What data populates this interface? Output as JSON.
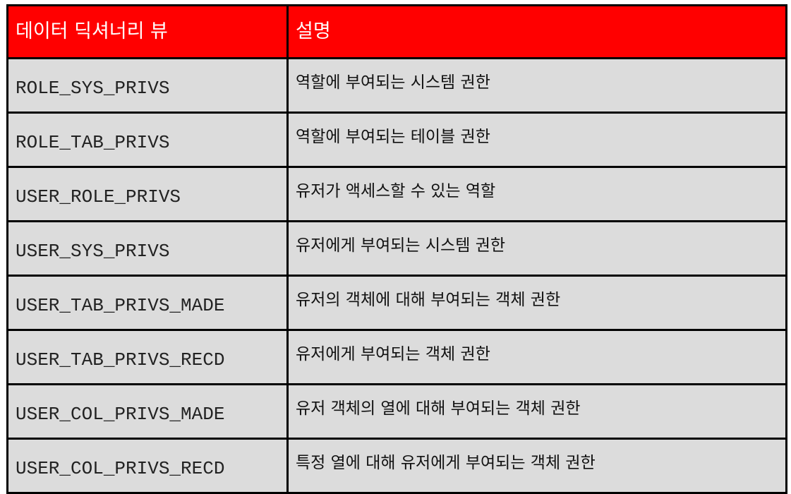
{
  "table": {
    "headers": [
      "데이터 딕셔너리 뷰",
      "설명"
    ],
    "header_color": "#ff0000",
    "row_color": "#dcdcdc",
    "rows": [
      {
        "view": "ROLE_SYS_PRIVS",
        "desc": "역할에 부여되는 시스템 권한"
      },
      {
        "view": "ROLE_TAB_PRIVS",
        "desc": "역할에 부여되는 테이블 권한"
      },
      {
        "view": "USER_ROLE_PRIVS",
        "desc": "유저가 액세스할 수 있는 역할"
      },
      {
        "view": "USER_SYS_PRIVS",
        "desc": "유저에게 부여되는 시스템 권한"
      },
      {
        "view": "USER_TAB_PRIVS_MADE",
        "desc": "유저의 객체에 대해 부여되는 객체 권한"
      },
      {
        "view": "USER_TAB_PRIVS_RECD",
        "desc": "유저에게 부여되는 객체 권한"
      },
      {
        "view": "USER_COL_PRIVS_MADE",
        "desc": "유저 객체의 열에 대해 부여되는 객체 권한"
      },
      {
        "view": "USER_COL_PRIVS_RECD",
        "desc": "특정 열에 대해 유저에게 부여되는 객체 권한"
      }
    ]
  }
}
